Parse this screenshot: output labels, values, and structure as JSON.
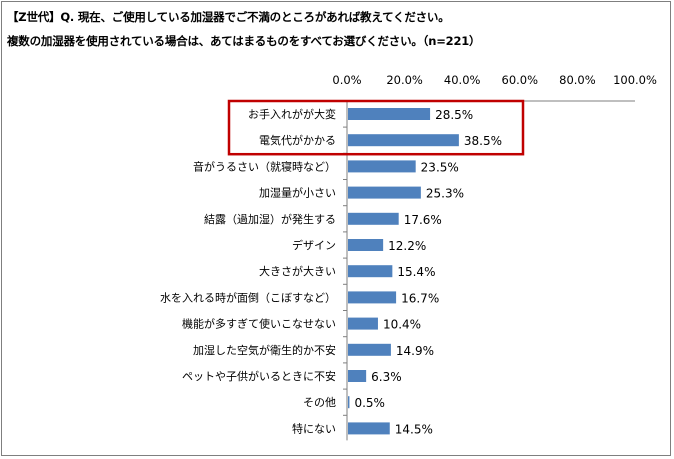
{
  "header": {
    "line1": "【Z世代】Q. 現在、ご使用している加湿器でご不満のところがあれば教えてください。",
    "line2": "複数の加湿器を使用されている場合は、あてはまるものをすべてお選びください。（n=221）"
  },
  "colors": {
    "bar": "#4f81bd",
    "highlight_box": "#c00000",
    "axis": "#7f7f7f"
  },
  "chart_data": {
    "type": "bar",
    "orientation": "horizontal",
    "categories": [
      "お手入れがが大変",
      "電気代がかかる",
      "音がうるさい（就寝時など）",
      "加湿量が小さい",
      "結露（過加湿）が発生する",
      "デザイン",
      "大きさが大きい",
      "水を入れる時が面倒（こぼすなど）",
      "機能が多すぎて使いこなせない",
      "加湿した空気が衛生的か不安",
      "ペットや子供がいるときに不安",
      "その他",
      "特にない"
    ],
    "values": [
      28.5,
      38.5,
      23.5,
      25.3,
      17.6,
      12.2,
      15.4,
      16.7,
      10.4,
      14.9,
      6.3,
      0.5,
      14.5
    ],
    "value_labels": [
      "28.5%",
      "38.5%",
      "23.5%",
      "25.3%",
      "17.6%",
      "12.2%",
      "15.4%",
      "16.7%",
      "10.4%",
      "14.9%",
      "6.3%",
      "0.5%",
      "14.5%"
    ],
    "tick_labels": [
      "0.0%",
      "20.0%",
      "40.0%",
      "60.0%",
      "80.0%",
      "100.0%"
    ],
    "xlim": [
      0,
      100
    ],
    "axis_position": "top",
    "grid": false,
    "highlighted_categories": [
      0,
      1
    ]
  }
}
